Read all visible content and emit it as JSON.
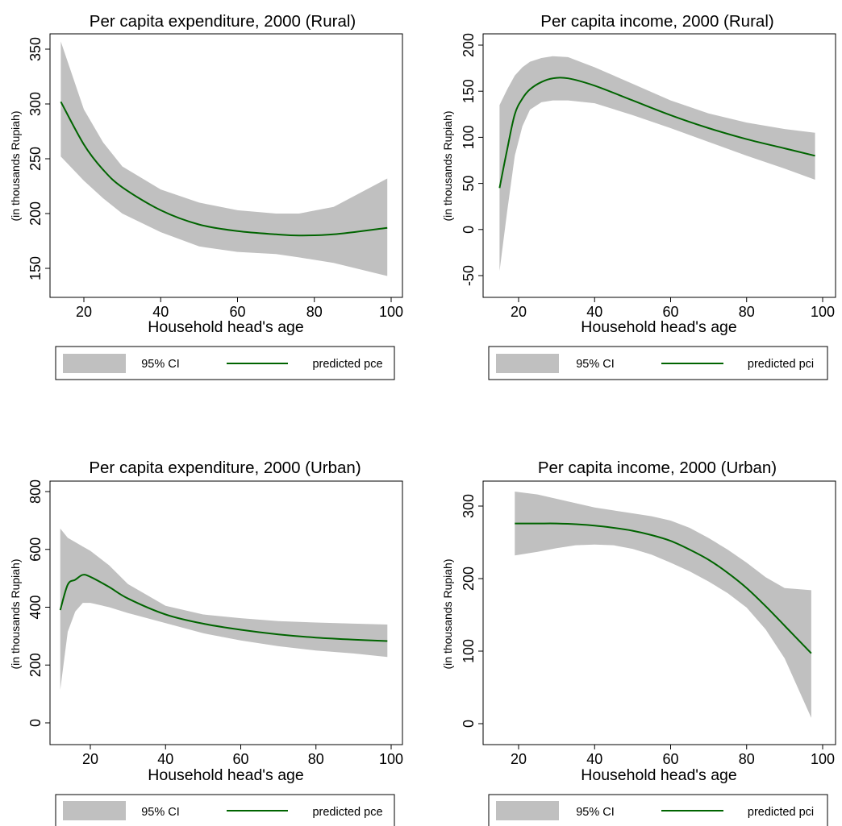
{
  "palette": {
    "ci_band": "#c0c0c0",
    "line": "#006400"
  },
  "chart_data": [
    {
      "type": "line",
      "title": "Per capita expenditure, 2000 (Rural)",
      "xlabel": "Household head's age",
      "ylabel": "(in thousands Rupiah)",
      "xlim": [
        14,
        99
      ],
      "ylim": [
        143,
        358
      ],
      "xticks": [
        20,
        40,
        60,
        80,
        100
      ],
      "yticks": [
        150,
        200,
        250,
        300,
        350
      ],
      "legend": {
        "band_label": "95% CI",
        "line_label": "predicted pce",
        "position": "bottom"
      },
      "series": [
        {
          "name": "predicted pce",
          "x": [
            14,
            20,
            25,
            30,
            40,
            50,
            60,
            70,
            76,
            85,
            99
          ],
          "y": [
            302,
            263,
            240,
            224,
            203,
            190,
            184,
            181,
            180,
            181,
            187
          ]
        }
      ],
      "ci": {
        "name": "95% CI",
        "x": [
          14,
          20,
          25,
          30,
          40,
          50,
          60,
          70,
          76,
          85,
          99
        ],
        "lower": [
          252,
          230,
          214,
          200,
          183,
          170,
          165,
          163,
          160,
          155,
          143
        ],
        "upper": [
          357,
          295,
          265,
          243,
          222,
          210,
          203,
          200,
          200,
          206,
          232
        ]
      }
    },
    {
      "type": "line",
      "title": "Per capita income, 2000 (Rural)",
      "xlabel": "Household head's age",
      "ylabel": "(in thousands Rupiah)",
      "xlim": [
        15,
        98
      ],
      "ylim": [
        -46,
        189
      ],
      "xticks": [
        20,
        40,
        60,
        80,
        100
      ],
      "yticks": [
        -50,
        0,
        50,
        100,
        150,
        200
      ],
      "legend": {
        "band_label": "95% CI",
        "line_label": "predicted pci",
        "position": "bottom"
      },
      "series": [
        {
          "name": "predicted pci",
          "x": [
            15,
            17,
            19,
            21,
            23,
            26,
            29,
            33,
            40,
            50,
            60,
            70,
            80,
            90,
            98
          ],
          "y": [
            45,
            87,
            125,
            142,
            152,
            160,
            164,
            164,
            156,
            140,
            124,
            110,
            98,
            88,
            80
          ]
        }
      ],
      "ci": {
        "name": "95% CI",
        "x": [
          15,
          17,
          19,
          21,
          23,
          26,
          29,
          33,
          40,
          50,
          60,
          70,
          80,
          90,
          98
        ],
        "lower": [
          -45,
          20,
          80,
          112,
          130,
          138,
          140,
          140,
          137,
          124,
          110,
          95,
          80,
          66,
          54
        ],
        "upper": [
          135,
          152,
          167,
          176,
          182,
          186,
          188,
          187,
          176,
          158,
          140,
          126,
          116,
          109,
          105
        ]
      }
    },
    {
      "type": "line",
      "title": "Per capita expenditure, 2000 (Urban)",
      "xlabel": "Household head's age",
      "ylabel": "(in thousands Rupiah)",
      "xlim": [
        12,
        99
      ],
      "ylim": [
        114,
        672
      ],
      "xticks": [
        20,
        40,
        60,
        80,
        100
      ],
      "yticks": [
        0,
        200,
        400,
        600,
        800
      ],
      "legend": {
        "band_label": "95% CI",
        "line_label": "predicted pce",
        "position": "bottom"
      },
      "series": [
        {
          "name": "predicted pce",
          "x": [
            12,
            14,
            16,
            18,
            20,
            25,
            30,
            40,
            50,
            60,
            70,
            80,
            90,
            99
          ],
          "y": [
            390,
            478,
            495,
            512,
            505,
            470,
            430,
            375,
            343,
            322,
            306,
            295,
            288,
            283
          ]
        }
      ],
      "ci": {
        "name": "95% CI",
        "x": [
          12,
          14,
          16,
          18,
          20,
          25,
          30,
          40,
          50,
          60,
          70,
          80,
          90,
          99
        ],
        "lower": [
          114,
          315,
          385,
          415,
          415,
          400,
          380,
          345,
          310,
          285,
          265,
          250,
          240,
          228
        ],
        "upper": [
          672,
          640,
          625,
          610,
          595,
          545,
          480,
          405,
          375,
          362,
          352,
          347,
          343,
          340
        ]
      }
    },
    {
      "type": "line",
      "title": "Per capita income, 2000 (Urban)",
      "xlabel": "Household head's age",
      "ylabel": "(in thousands Rupiah)",
      "xlim": [
        19,
        97
      ],
      "ylim": [
        8,
        320
      ],
      "xticks": [
        20,
        40,
        60,
        80,
        100
      ],
      "yticks": [
        0,
        100,
        200,
        300
      ],
      "legend": {
        "band_label": "95% CI",
        "line_label": "predicted pci",
        "position": "bottom"
      },
      "series": [
        {
          "name": "predicted pci",
          "x": [
            19,
            25,
            30,
            35,
            40,
            45,
            50,
            55,
            60,
            65,
            70,
            75,
            80,
            85,
            90,
            97
          ],
          "y": [
            276,
            276,
            276,
            275,
            273,
            270,
            266,
            260,
            252,
            240,
            226,
            208,
            187,
            162,
            135,
            97
          ]
        }
      ],
      "ci": {
        "name": "95% CI",
        "x": [
          19,
          25,
          30,
          35,
          40,
          45,
          50,
          55,
          60,
          65,
          70,
          75,
          80,
          85,
          90,
          97
        ],
        "lower": [
          232,
          237,
          242,
          246,
          247,
          246,
          241,
          233,
          222,
          210,
          196,
          180,
          160,
          130,
          90,
          8
        ],
        "upper": [
          320,
          316,
          310,
          304,
          298,
          294,
          290,
          286,
          280,
          270,
          256,
          240,
          222,
          202,
          187,
          184
        ]
      }
    }
  ]
}
